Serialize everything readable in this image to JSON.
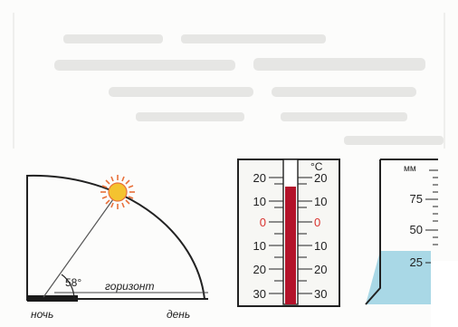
{
  "sun_diagram": {
    "angle_label": "58°",
    "horizon_label": "горизонт",
    "night_label": "ночь",
    "day_label": "день",
    "colors": {
      "sun": "#f4c330",
      "sun_rays": "#e8703a",
      "night_bar": "#1a1a1a",
      "line": "#222222"
    },
    "icons": [
      "sun-icon"
    ]
  },
  "thermometer": {
    "unit_label": "°C",
    "left_scale": [
      "20",
      "10",
      "0",
      "10",
      "20",
      "30"
    ],
    "right_scale": [
      "20",
      "10",
      "0",
      "10",
      "20",
      "30"
    ],
    "zero_color": "#d9322e",
    "mercury_color": "#b3122a"
  },
  "rain_gauge": {
    "unit_label": "мм",
    "scale": [
      "75",
      "50",
      "25"
    ],
    "water_level_mm": 25,
    "water_color": "#a9d8e6"
  }
}
